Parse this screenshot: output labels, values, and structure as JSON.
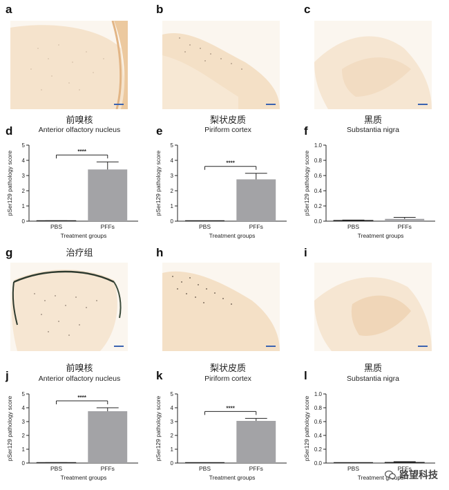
{
  "panel_letters": {
    "a": "a",
    "b": "b",
    "c": "c",
    "d": "d",
    "e": "e",
    "f": "f",
    "g": "g",
    "h": "h",
    "i": "i",
    "j": "j",
    "k": "k",
    "l": "l"
  },
  "titles": {
    "d_cn": "前嗅核",
    "d_en": "Anterior olfactory nucleus",
    "e_cn": "梨状皮质",
    "e_en": "Piriform cortex",
    "f_cn": "黑质",
    "f_en": "Substantia nigra",
    "g_cn": "治疗组",
    "j_cn": "前嗅核",
    "j_en": "Anterior olfactory nucleus",
    "k_cn": "梨状皮质",
    "k_en": "Piriform cortex",
    "l_cn": "黑质",
    "l_en": "Substantia nigra"
  },
  "watermark": "路望科技",
  "colors": {
    "bar": "#a3a3a6",
    "axis": "#222222",
    "tissue": "#f3dfc6",
    "background": "#fbf6ef"
  },
  "chart_data": [
    {
      "id": "d",
      "type": "bar",
      "categories": [
        "PBS",
        "PFFs"
      ],
      "values": [
        0.02,
        3.4
      ],
      "errors": [
        0.01,
        0.5
      ],
      "ylim": [
        0,
        5
      ],
      "yticks": [
        "0",
        "1",
        "2",
        "3",
        "4",
        "5"
      ],
      "ylabel": "pSer129 pathology score",
      "xlabel": "Treatment groups",
      "significance": "****"
    },
    {
      "id": "e",
      "type": "bar",
      "categories": [
        "PBS",
        "PFFs"
      ],
      "values": [
        0.0,
        2.75
      ],
      "errors": [
        0.0,
        0.4
      ],
      "ylim": [
        0,
        5
      ],
      "yticks": [
        "0",
        "1",
        "2",
        "3",
        "4",
        "5"
      ],
      "ylabel": "pSer129 pathology score",
      "xlabel": "Treatment groups",
      "significance": "****"
    },
    {
      "id": "f",
      "type": "bar",
      "categories": [
        "PBS",
        "PFFs"
      ],
      "values": [
        0.01,
        0.03
      ],
      "errors": [
        0.005,
        0.02
      ],
      "ylim": [
        0,
        1.0
      ],
      "yticks": [
        "0.0",
        "0.2",
        "0.4",
        "0.6",
        "0.8",
        "1.0"
      ],
      "ylabel": "pSer129 pathology score",
      "xlabel": "Treatment groups",
      "significance": ""
    },
    {
      "id": "j",
      "type": "bar",
      "categories": [
        "PBS",
        "PFFs"
      ],
      "values": [
        0.02,
        3.75
      ],
      "errors": [
        0.01,
        0.25
      ],
      "ylim": [
        0,
        5
      ],
      "yticks": [
        "0",
        "1",
        "2",
        "3",
        "4",
        "5"
      ],
      "ylabel": "pSer129 pathology score",
      "xlabel": "Treatment groups",
      "significance": "****"
    },
    {
      "id": "k",
      "type": "bar",
      "categories": [
        "PBS",
        "PFFs"
      ],
      "values": [
        0.0,
        3.05
      ],
      "errors": [
        0.0,
        0.18
      ],
      "ylim": [
        0,
        5
      ],
      "yticks": [
        "0",
        "1",
        "2",
        "3",
        "4",
        "5"
      ],
      "ylabel": "pSer129 pathology score",
      "xlabel": "Treatment groups",
      "significance": "****"
    },
    {
      "id": "l",
      "type": "bar",
      "categories": [
        "PBS",
        "PFFs"
      ],
      "values": [
        0.0,
        0.01
      ],
      "errors": [
        0.0,
        0.01
      ],
      "ylim": [
        0,
        1.0
      ],
      "yticks": [
        "0.0",
        "0.2",
        "0.4",
        "0.6",
        "0.8",
        "1.0"
      ],
      "ylabel": "pSer129 pathology score",
      "xlabel": "Treatment groups",
      "significance": ""
    }
  ]
}
